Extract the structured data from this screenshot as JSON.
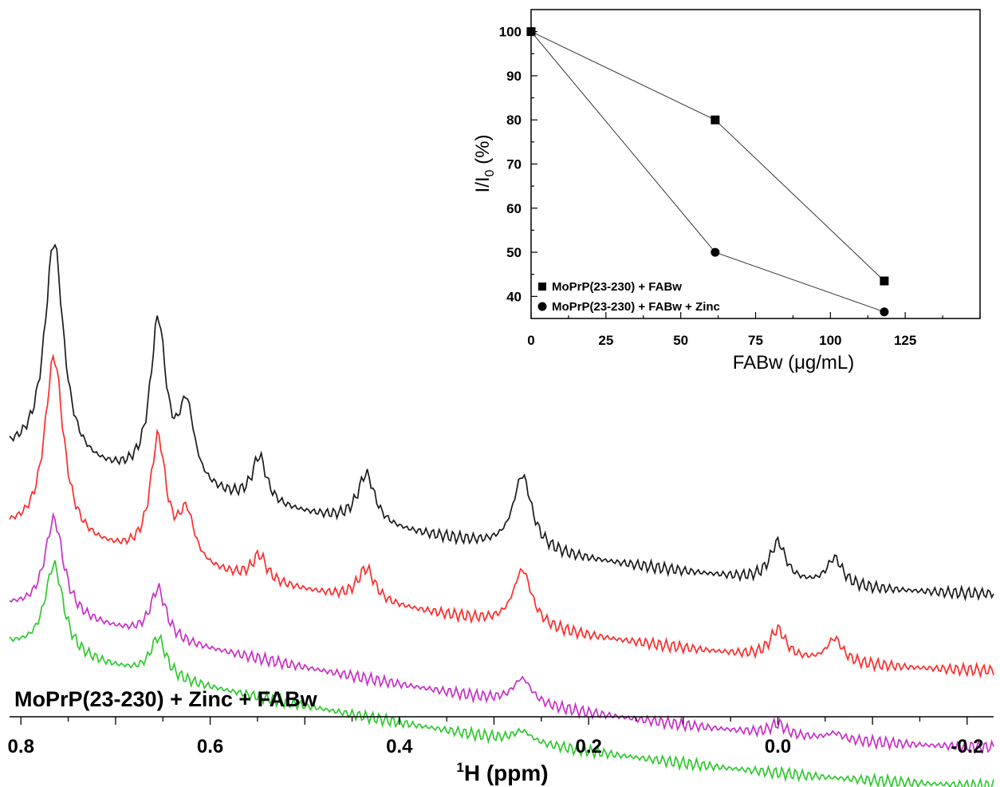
{
  "chart_data": [
    {
      "type": "line",
      "title": "",
      "panel_label": "MoPrP(23-230) + Zinc + FABw",
      "xlabel_prefix": "1",
      "xlabel_main": "H (ppm)",
      "ylabel": "",
      "x_reversed": true,
      "xlim": [
        0.812,
        -0.228
      ],
      "tick_values": [
        0.8,
        0.6,
        0.4,
        0.2,
        0.0,
        -0.2
      ],
      "tick_labels": [
        "0.8",
        "0.6",
        "0.4",
        "0.2",
        "0.0",
        "-0.2"
      ],
      "peaks_ppm": [
        0.765,
        0.655,
        0.625,
        0.548,
        0.435,
        0.27,
        0.0,
        -0.06
      ],
      "series": [
        {
          "color": "#1a1a1a",
          "base": 0.0,
          "y": [
            86,
            95,
            74,
            50,
            39,
            47,
            37,
            32,
            40,
            19,
            25,
            20,
            21,
            17,
            20,
            15,
            9
          ]
        },
        {
          "color": "#ff2a2a",
          "base": -12.0,
          "y": [
            75,
            84,
            63,
            42,
            33,
            40,
            32,
            28,
            35,
            18,
            22,
            17,
            20,
            16,
            19,
            14,
            9
          ]
        },
        {
          "color": "#c72fc7",
          "base": -24.0,
          "y": [
            50,
            60,
            43,
            25,
            23,
            30,
            22,
            21,
            26,
            13,
            17,
            12,
            15,
            13,
            13,
            10,
            8
          ]
        },
        {
          "color": "#2ec82e",
          "base": -30.0,
          "y": [
            55,
            58,
            40,
            22,
            19,
            25,
            17,
            16,
            22,
            11,
            12,
            11,
            11,
            11,
            10,
            9,
            7
          ]
        }
      ]
    },
    {
      "type": "line",
      "title": "",
      "xlabel": "FABw (μg/mL)",
      "ylabel_main": "I/I",
      "ylabel_sub": "0",
      "ylabel_suffix": " (%)",
      "xlim": [
        0,
        150
      ],
      "ylim": [
        35,
        105
      ],
      "xticks": [
        0,
        25,
        50,
        75,
        100,
        125
      ],
      "yticks": [
        40,
        50,
        60,
        70,
        80,
        90,
        100
      ],
      "legend_position": "bottom-left",
      "series": [
        {
          "name": "MoPrP(23-230) + FABw",
          "marker": "square",
          "x": [
            0,
            61.5,
            118
          ],
          "y": [
            100,
            80,
            43.5
          ]
        },
        {
          "name": "MoPrP(23-230) + FABw + Zinc",
          "marker": "circle",
          "x": [
            0,
            61.5,
            118
          ],
          "y": [
            100,
            50,
            36.5
          ]
        }
      ]
    }
  ]
}
